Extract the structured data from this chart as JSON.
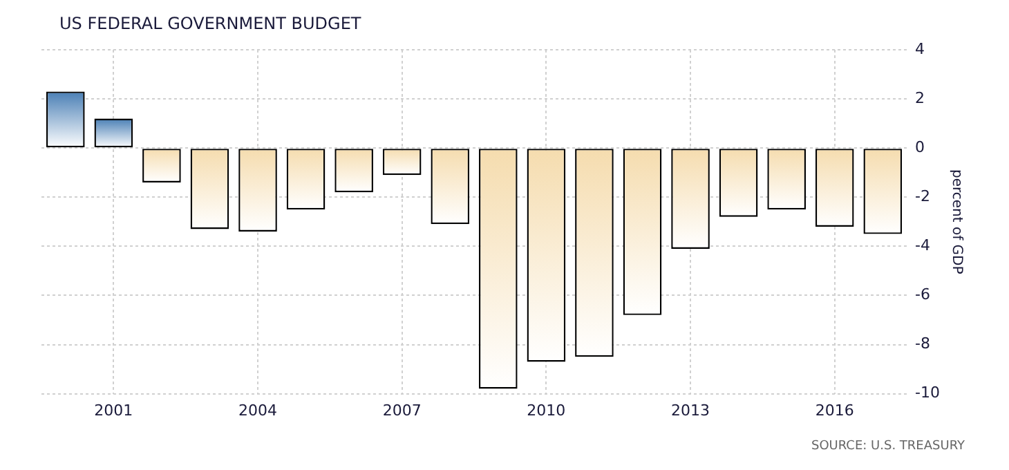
{
  "chart_data": {
    "type": "bar",
    "title": "US FEDERAL GOVERNMENT BUDGET",
    "ylabel": "percent of GDP",
    "categories": [
      null,
      "2001",
      null,
      null,
      "2004",
      null,
      null,
      "2007",
      null,
      null,
      "2010",
      null,
      null,
      "2013",
      null,
      null,
      "2016",
      null
    ],
    "values": [
      2.3,
      1.2,
      -1.4,
      -3.3,
      -3.4,
      -2.5,
      -1.8,
      -1.1,
      -3.1,
      -9.8,
      -8.7,
      -8.5,
      -6.8,
      -4.1,
      -2.8,
      -2.5,
      -3.2,
      -3.5
    ],
    "colors": [
      "#4a7fb5",
      "#4a7fb5",
      "#f5dcae",
      "#f5dcae",
      "#f5dcae",
      "#f5dcae",
      "#f5dcae",
      "#f5dcae",
      "#f5dcae",
      "#f5dcae",
      "#f5dcae",
      "#f5dcae",
      "#f5dcae",
      "#f5dcae",
      "#f5dcae",
      "#f5dcae",
      "#f5dcae",
      "#f5dcae"
    ],
    "ylim": [
      -10,
      4
    ],
    "yticks": [
      -10,
      -8,
      -6,
      -4,
      -2,
      0,
      2,
      4
    ],
    "grid": true,
    "legend": false,
    "annotations": [
      "SOURCE: U.S. TREASURY"
    ]
  }
}
